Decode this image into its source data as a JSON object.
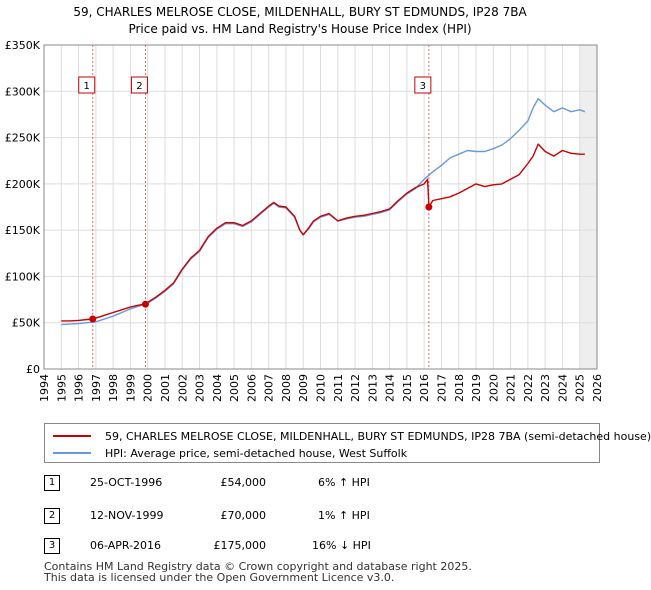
{
  "chart_data": {
    "type": "line",
    "title": "59, CHARLES MELROSE CLOSE, MILDENHALL, BURY ST EDMUNDS, IP28 7BA",
    "subtitle": "Price paid vs. HM Land Registry's House Price Index (HPI)",
    "xlabel": "",
    "ylabel": "",
    "xlim": [
      1994,
      2026
    ],
    "ylim": [
      0,
      350000
    ],
    "x_ticks": [
      1994,
      1995,
      1996,
      1997,
      1998,
      1999,
      2000,
      2001,
      2002,
      2003,
      2004,
      2005,
      2006,
      2007,
      2008,
      2009,
      2010,
      2011,
      2012,
      2013,
      2014,
      2015,
      2016,
      2017,
      2018,
      2019,
      2020,
      2021,
      2022,
      2023,
      2024,
      2025,
      2026
    ],
    "y_ticks": [
      {
        "value": 0,
        "label": "£0"
      },
      {
        "value": 50000,
        "label": "£50K"
      },
      {
        "value": 100000,
        "label": "£100K"
      },
      {
        "value": 150000,
        "label": "£150K"
      },
      {
        "value": 200000,
        "label": "£200K"
      },
      {
        "value": 250000,
        "label": "£250K"
      },
      {
        "value": 300000,
        "label": "£300K"
      },
      {
        "value": 350000,
        "label": "£350K"
      }
    ],
    "grid": true,
    "series": [
      {
        "name": "59, CHARLES MELROSE CLOSE, MILDENHALL, BURY ST EDMUNDS, IP28 7BA (semi-detached house)",
        "color": "#cc0000",
        "x": [
          1995.0,
          1995.5,
          1996.0,
          1996.5,
          1996.82,
          1997.0,
          1997.5,
          1998.0,
          1998.5,
          1999.0,
          1999.5,
          1999.87,
          2000.0,
          2000.5,
          2001.0,
          2001.5,
          2002.0,
          2002.5,
          2003.0,
          2003.5,
          2004.0,
          2004.5,
          2005.0,
          2005.5,
          2006.0,
          2006.5,
          2007.0,
          2007.3,
          2007.6,
          2008.0,
          2008.5,
          2008.8,
          2009.0,
          2009.3,
          2009.6,
          2010.0,
          2010.5,
          2011.0,
          2011.5,
          2012.0,
          2012.5,
          2013.0,
          2013.5,
          2014.0,
          2014.5,
          2015.0,
          2015.5,
          2016.0,
          2016.2,
          2016.27,
          2016.5,
          2017.0,
          2017.5,
          2018.0,
          2018.5,
          2019.0,
          2019.5,
          2020.0,
          2020.5,
          2021.0,
          2021.5,
          2022.0,
          2022.3,
          2022.6,
          2023.0,
          2023.5,
          2024.0,
          2024.5,
          2025.0,
          2025.3
        ],
        "values": [
          52000,
          52000,
          52500,
          53500,
          54000,
          55000,
          58000,
          61000,
          64000,
          67000,
          69000,
          70000,
          72000,
          78000,
          85000,
          93000,
          108000,
          120000,
          128000,
          143000,
          152000,
          158000,
          158000,
          155000,
          160000,
          168000,
          176000,
          180000,
          176000,
          175000,
          165000,
          150000,
          145000,
          152000,
          160000,
          165000,
          168000,
          160000,
          163000,
          165000,
          166000,
          168000,
          170000,
          173000,
          182000,
          190000,
          196000,
          200000,
          205000,
          175000,
          182000,
          184000,
          186000,
          190000,
          195000,
          200000,
          197000,
          199000,
          200000,
          205000,
          210000,
          222000,
          230000,
          243000,
          235000,
          230000,
          236000,
          233000,
          232000,
          232000
        ]
      },
      {
        "name": "HPI: Average price, semi-detached house, West Suffolk",
        "color": "#6699dd",
        "x": [
          1995.0,
          1995.5,
          1996.0,
          1996.5,
          1997.0,
          1997.5,
          1998.0,
          1998.5,
          1999.0,
          1999.5,
          2000.0,
          2000.5,
          2001.0,
          2001.5,
          2002.0,
          2002.5,
          2003.0,
          2003.5,
          2004.0,
          2004.5,
          2005.0,
          2005.5,
          2006.0,
          2006.5,
          2007.0,
          2007.3,
          2007.6,
          2008.0,
          2008.5,
          2008.8,
          2009.0,
          2009.3,
          2009.6,
          2010.0,
          2010.5,
          2011.0,
          2011.5,
          2012.0,
          2012.5,
          2013.0,
          2013.5,
          2014.0,
          2014.5,
          2015.0,
          2015.5,
          2016.0,
          2016.5,
          2017.0,
          2017.5,
          2018.0,
          2018.5,
          2019.0,
          2019.5,
          2020.0,
          2020.5,
          2021.0,
          2021.5,
          2022.0,
          2022.3,
          2022.6,
          2023.0,
          2023.5,
          2024.0,
          2024.5,
          2025.0,
          2025.3
        ],
        "values": [
          48000,
          48500,
          49000,
          50000,
          51000,
          54000,
          57000,
          61000,
          65000,
          68000,
          71000,
          77000,
          84000,
          92000,
          107000,
          119000,
          127000,
          142000,
          151000,
          157000,
          157000,
          154000,
          159000,
          167000,
          175000,
          179000,
          175000,
          174000,
          164000,
          150000,
          145000,
          151000,
          159000,
          164000,
          167000,
          160000,
          162000,
          164000,
          165000,
          167000,
          169000,
          172000,
          181000,
          189000,
          195000,
          205000,
          213000,
          220000,
          228000,
          232000,
          236000,
          235000,
          235000,
          238000,
          242000,
          249000,
          258000,
          268000,
          282000,
          292000,
          285000,
          278000,
          282000,
          278000,
          280000,
          278000
        ]
      }
    ],
    "sales": [
      {
        "label": "1",
        "x": 1996.82,
        "value": 54000
      },
      {
        "label": "2",
        "x": 1999.87,
        "value": 70000
      },
      {
        "label": "3",
        "x": 2016.27,
        "value": 175000
      }
    ],
    "future_shade_from": 2025.0
  },
  "legend": {
    "items": [
      {
        "label": "59, CHARLES MELROSE CLOSE, MILDENHALL, BURY ST EDMUNDS, IP28 7BA (semi-detached house)",
        "color": "#cc0000"
      },
      {
        "label": "HPI: Average price, semi-detached house, West Suffolk",
        "color": "#6699dd"
      }
    ]
  },
  "sales_table": [
    {
      "num": "1",
      "date": "25-OCT-1996",
      "price": "£54,000",
      "hpi": "6% ↑ HPI"
    },
    {
      "num": "2",
      "date": "12-NOV-1999",
      "price": "£70,000",
      "hpi": "1% ↑ HPI"
    },
    {
      "num": "3",
      "date": "06-APR-2016",
      "price": "£175,000",
      "hpi": "16% ↓ HPI"
    }
  ],
  "footer": {
    "line1": "Contains HM Land Registry data © Crown copyright and database right 2025.",
    "line2": "This data is licensed under the Open Government Licence v3.0."
  }
}
